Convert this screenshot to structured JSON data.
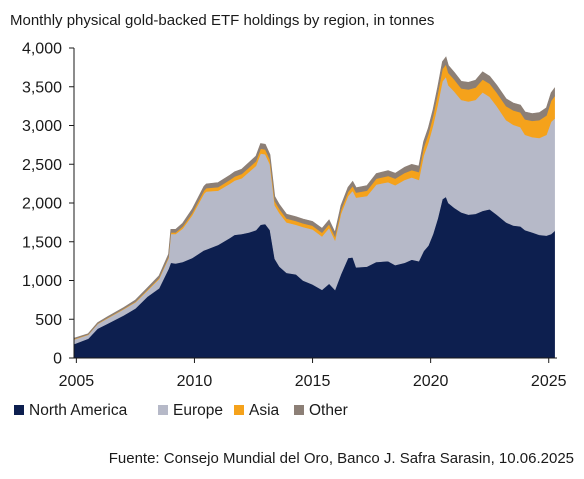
{
  "chart_data": {
    "type": "area",
    "title": "Monthly physical gold-backed ETF holdings by region, in tonnes",
    "source": "Fuente: Consejo Mundial del Oro, Banco J. Safra Sarasin, 10.06.2025",
    "stacked": true,
    "x_ticks": [
      "2005",
      "2010",
      "2015",
      "2020",
      "2025"
    ],
    "y_ticks": [
      "0",
      "500",
      "1,000",
      "1,500",
      "2,000",
      "2,500",
      "3,000",
      "3,500",
      "4,000"
    ],
    "xlim": [
      2004.9,
      2025.35
    ],
    "ylim": [
      0,
      4000
    ],
    "grid": false,
    "legend_position": "bottom",
    "x": [
      2004.9,
      2005.5,
      2005.9,
      2006.3,
      2007.0,
      2007.5,
      2008.0,
      2008.5,
      2008.9,
      2009.0,
      2009.2,
      2009.5,
      2009.9,
      2010.4,
      2010.5,
      2011.0,
      2011.5,
      2011.7,
      2012.0,
      2012.3,
      2012.6,
      2012.8,
      2013.0,
      2013.2,
      2013.4,
      2013.6,
      2013.9,
      2014.3,
      2014.6,
      2015.0,
      2015.4,
      2015.7,
      2015.95,
      2016.2,
      2016.5,
      2016.7,
      2016.85,
      2017.3,
      2017.7,
      2018.2,
      2018.5,
      2018.9,
      2019.2,
      2019.5,
      2019.7,
      2019.9,
      2020.1,
      2020.3,
      2020.5,
      2020.65,
      2020.75,
      2021.0,
      2021.3,
      2021.6,
      2021.9,
      2022.2,
      2022.5,
      2022.8,
      2023.2,
      2023.5,
      2023.8,
      2024.0,
      2024.3,
      2024.6,
      2024.9,
      2025.1,
      2025.25
    ],
    "series": [
      {
        "name": "North America",
        "color": "#0d1f4f",
        "values": [
          180,
          250,
          380,
          440,
          550,
          640,
          790,
          900,
          1150,
          1230,
          1220,
          1240,
          1290,
          1390,
          1400,
          1460,
          1550,
          1590,
          1600,
          1620,
          1650,
          1720,
          1730,
          1650,
          1280,
          1180,
          1100,
          1080,
          1000,
          950,
          880,
          960,
          880,
          1080,
          1290,
          1300,
          1170,
          1180,
          1240,
          1250,
          1200,
          1230,
          1270,
          1250,
          1380,
          1450,
          1600,
          1800,
          2050,
          2080,
          2000,
          1940,
          1880,
          1850,
          1860,
          1900,
          1920,
          1850,
          1750,
          1710,
          1700,
          1650,
          1620,
          1590,
          1580,
          1600,
          1640
        ]
      },
      {
        "name": "Europe",
        "color": "#b6b9c8",
        "values": [
          60,
          50,
          60,
          70,
          80,
          80,
          80,
          120,
          140,
          370,
          380,
          430,
          550,
          730,
          750,
          700,
          700,
          700,
          720,
          780,
          830,
          920,
          900,
          850,
          690,
          690,
          650,
          640,
          690,
          710,
          690,
          720,
          640,
          780,
          800,
          860,
          900,
          910,
          1000,
          1020,
          1030,
          1070,
          1060,
          1050,
          1230,
          1330,
          1400,
          1470,
          1520,
          1550,
          1520,
          1500,
          1450,
          1460,
          1470,
          1530,
          1450,
          1400,
          1320,
          1300,
          1280,
          1230,
          1230,
          1250,
          1300,
          1450,
          1450
        ]
      },
      {
        "name": "Asia",
        "color": "#f5a21b",
        "values": [
          5,
          5,
          5,
          6,
          6,
          8,
          10,
          12,
          15,
          20,
          20,
          25,
          30,
          40,
          42,
          45,
          50,
          52,
          55,
          57,
          60,
          62,
          62,
          60,
          55,
          52,
          50,
          48,
          48,
          48,
          48,
          48,
          48,
          50,
          55,
          60,
          65,
          70,
          75,
          80,
          85,
          90,
          95,
          100,
          105,
          110,
          120,
          140,
          160,
          160,
          160,
          155,
          150,
          155,
          160,
          165,
          170,
          175,
          180,
          185,
          190,
          200,
          210,
          230,
          250,
          270,
          290
        ]
      },
      {
        "name": "Other",
        "color": "#8c7f76",
        "values": [
          10,
          10,
          12,
          14,
          16,
          20,
          25,
          30,
          35,
          40,
          40,
          45,
          50,
          55,
          55,
          60,
          60,
          60,
          62,
          64,
          65,
          66,
          66,
          65,
          60,
          58,
          56,
          55,
          55,
          55,
          55,
          55,
          55,
          56,
          58,
          60,
          62,
          64,
          66,
          68,
          70,
          72,
          74,
          76,
          78,
          80,
          85,
          90,
          95,
          95,
          95,
          92,
          90,
          92,
          95,
          98,
          96,
          95,
          95,
          95,
          95,
          95,
          95,
          97,
          100,
          102,
          104
        ]
      }
    ]
  }
}
